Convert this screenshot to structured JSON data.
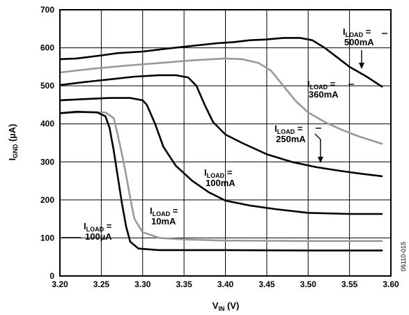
{
  "chart_data": {
    "type": "line",
    "xlabel": {
      "main": "V",
      "sub": "IN",
      "unit": " (V)"
    },
    "ylabel": {
      "main": "I",
      "sub": "GND",
      "unit": " (µA)"
    },
    "xlim": [
      3.2,
      3.6
    ],
    "ylim": [
      0,
      700
    ],
    "x_ticks": [
      "3.20",
      "3.25",
      "3.30",
      "3.35",
      "3.40",
      "3.45",
      "3.50",
      "3.55",
      "3.60"
    ],
    "y_ticks": [
      "0",
      "100",
      "200",
      "300",
      "400",
      "500",
      "600",
      "700"
    ],
    "grid": true,
    "figure_code": "06110-015",
    "series": [
      {
        "name": "ILOAD = 500mA",
        "color": "#000000",
        "points": [
          [
            3.2,
            570
          ],
          [
            3.22,
            572
          ],
          [
            3.25,
            580
          ],
          [
            3.27,
            586
          ],
          [
            3.3,
            590
          ],
          [
            3.33,
            598
          ],
          [
            3.36,
            605
          ],
          [
            3.39,
            612
          ],
          [
            3.41,
            615
          ],
          [
            3.43,
            620
          ],
          [
            3.45,
            622
          ],
          [
            3.47,
            626
          ],
          [
            3.49,
            626
          ],
          [
            3.505,
            620
          ],
          [
            3.52,
            600
          ],
          [
            3.535,
            575
          ],
          [
            3.55,
            550
          ],
          [
            3.57,
            525
          ],
          [
            3.59,
            497
          ]
        ]
      },
      {
        "name": "ILOAD = 360mA",
        "color": "#999999",
        "points": [
          [
            3.2,
            535
          ],
          [
            3.24,
            545
          ],
          [
            3.28,
            553
          ],
          [
            3.32,
            560
          ],
          [
            3.36,
            567
          ],
          [
            3.4,
            572
          ],
          [
            3.42,
            570
          ],
          [
            3.44,
            560
          ],
          [
            3.455,
            540
          ],
          [
            3.47,
            500
          ],
          [
            3.485,
            460
          ],
          [
            3.5,
            430
          ],
          [
            3.52,
            405
          ],
          [
            3.54,
            385
          ],
          [
            3.56,
            368
          ],
          [
            3.59,
            347
          ]
        ]
      },
      {
        "name": "ILOAD = 250mA",
        "color": "#000000",
        "points": [
          [
            3.2,
            502
          ],
          [
            3.23,
            510
          ],
          [
            3.26,
            517
          ],
          [
            3.29,
            524
          ],
          [
            3.32,
            528
          ],
          [
            3.34,
            528
          ],
          [
            3.355,
            522
          ],
          [
            3.365,
            500
          ],
          [
            3.375,
            450
          ],
          [
            3.385,
            405
          ],
          [
            3.4,
            372
          ],
          [
            3.42,
            350
          ],
          [
            3.45,
            320
          ],
          [
            3.48,
            300
          ],
          [
            3.51,
            286
          ],
          [
            3.54,
            276
          ],
          [
            3.56,
            270
          ],
          [
            3.59,
            262
          ]
        ]
      },
      {
        "name": "ILOAD = 100mA",
        "color": "#000000",
        "points": [
          [
            3.2,
            462
          ],
          [
            3.23,
            465
          ],
          [
            3.26,
            468
          ],
          [
            3.285,
            468
          ],
          [
            3.3,
            462
          ],
          [
            3.305,
            450
          ],
          [
            3.315,
            400
          ],
          [
            3.325,
            340
          ],
          [
            3.34,
            290
          ],
          [
            3.36,
            250
          ],
          [
            3.38,
            220
          ],
          [
            3.4,
            198
          ],
          [
            3.43,
            185
          ],
          [
            3.46,
            176
          ],
          [
            3.5,
            166
          ],
          [
            3.55,
            163
          ],
          [
            3.59,
            163
          ]
        ]
      },
      {
        "name": "ILOAD = 10mA",
        "color": "#999999",
        "points": [
          [
            3.2,
            428
          ],
          [
            3.23,
            431
          ],
          [
            3.255,
            430
          ],
          [
            3.265,
            415
          ],
          [
            3.27,
            370
          ],
          [
            3.275,
            320
          ],
          [
            3.28,
            265
          ],
          [
            3.285,
            205
          ],
          [
            3.29,
            150
          ],
          [
            3.3,
            115
          ],
          [
            3.32,
            100
          ],
          [
            3.35,
            96
          ],
          [
            3.4,
            93
          ],
          [
            3.5,
            92
          ],
          [
            3.59,
            92
          ]
        ]
      },
      {
        "name": "ILOAD = 100µA",
        "color": "#000000",
        "points": [
          [
            3.2,
            428
          ],
          [
            3.22,
            432
          ],
          [
            3.245,
            430
          ],
          [
            3.255,
            420
          ],
          [
            3.26,
            390
          ],
          [
            3.265,
            330
          ],
          [
            3.27,
            260
          ],
          [
            3.275,
            190
          ],
          [
            3.28,
            130
          ],
          [
            3.285,
            90
          ],
          [
            3.295,
            72
          ],
          [
            3.32,
            68
          ],
          [
            3.4,
            68
          ],
          [
            3.5,
            67
          ],
          [
            3.59,
            67
          ]
        ]
      }
    ],
    "annotations": [
      {
        "main": "I",
        "sub": "LOAD",
        "rest": " =",
        "line2": "500mA"
      },
      {
        "main": "I",
        "sub": "LOAD",
        "rest": " =",
        "line2": "360mA"
      },
      {
        "main": "I",
        "sub": "LOAD",
        "rest": " =",
        "line2": "250mA"
      },
      {
        "main": "I",
        "sub": "LOAD",
        "rest": " =",
        "line2": "100mA"
      },
      {
        "main": "I",
        "sub": "LOAD",
        "rest": " =",
        "line2": "10mA"
      },
      {
        "main": "I",
        "sub": "LOAD",
        "rest": " =",
        "line2": "100µA"
      }
    ]
  }
}
